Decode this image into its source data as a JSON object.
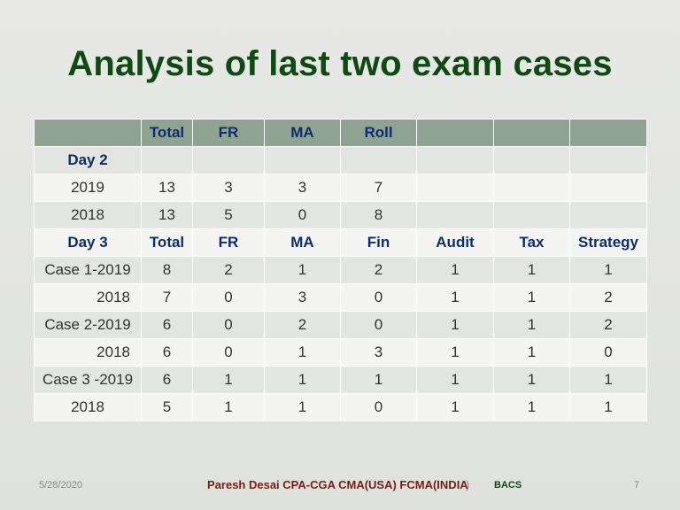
{
  "title": "Analysis of last two exam cases",
  "header_row": [
    "",
    "Total",
    "FR",
    "MA",
    "Roll",
    "",
    "",
    ""
  ],
  "rows": [
    [
      "Day 2",
      "",
      "",
      "",
      "",
      "",
      "",
      ""
    ],
    [
      "2019",
      "13",
      "3",
      "3",
      "7",
      "",
      "",
      ""
    ],
    [
      "2018",
      "13",
      "5",
      "0",
      "8",
      "",
      "",
      ""
    ],
    [
      "Day 3",
      "Total",
      "FR",
      "MA",
      "Fin",
      "Audit",
      "Tax",
      "Strategy"
    ],
    [
      "Case 1-2019",
      "8",
      "2",
      "1",
      "2",
      "1",
      "1",
      "1"
    ],
    [
      "2018",
      "7",
      "0",
      "3",
      "0",
      "1",
      "1",
      "2"
    ],
    [
      "Case 2-2019",
      "6",
      "0",
      "2",
      "0",
      "1",
      "1",
      "2"
    ],
    [
      "2018",
      "6",
      "0",
      "1",
      "3",
      "1",
      "1",
      "0"
    ],
    [
      "Case 3 -2019",
      "6",
      "1",
      "1",
      "1",
      "1",
      "1",
      "1"
    ],
    [
      "2018",
      "5",
      "1",
      "1",
      "0",
      "1",
      "1",
      "1"
    ]
  ],
  "footer": {
    "date": "5/28/2020",
    "author": "Paresh Desai CPA-CGA CMA(USA) FCMA(INDIA",
    "author_close": ")",
    "org": "BACS",
    "page": "7"
  }
}
